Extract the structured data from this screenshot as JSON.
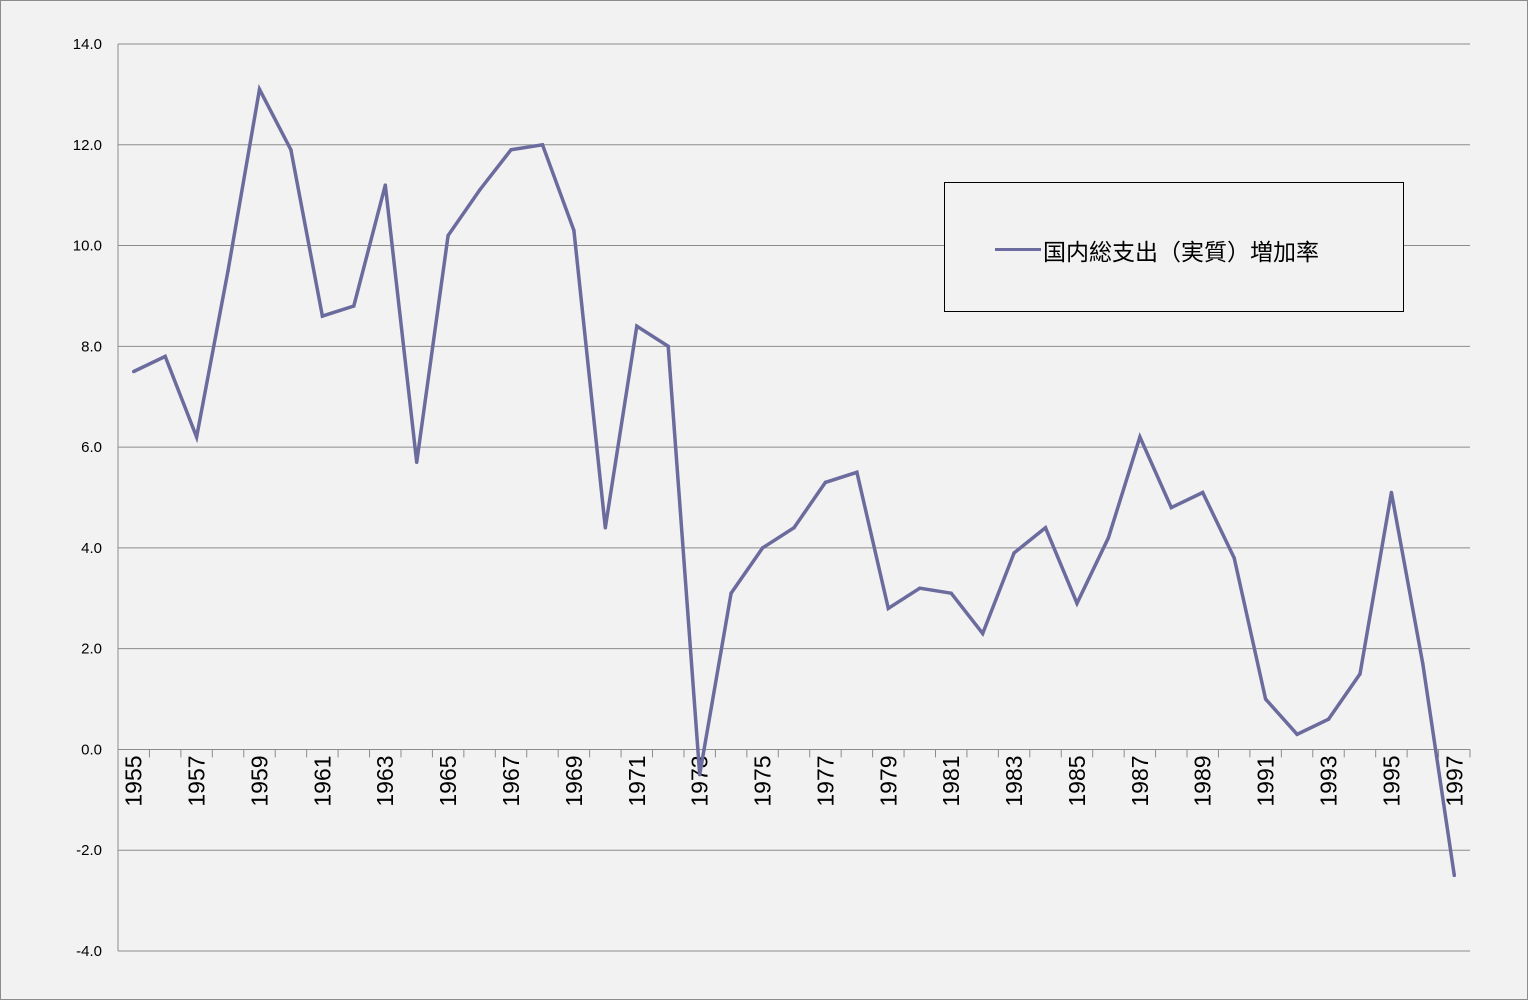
{
  "chart_data": {
    "type": "line",
    "title": "",
    "xlabel": "",
    "ylabel": "",
    "ylim": [
      -4.0,
      14.0
    ],
    "y_ticks": [
      "14.0",
      "12.0",
      "10.0",
      "8.0",
      "6.0",
      "4.0",
      "2.0",
      "0.0",
      "-2.0",
      "-4.0"
    ],
    "x_tick_labels": [
      "1955",
      "1957",
      "1959",
      "1961",
      "1963",
      "1965",
      "1967",
      "1969",
      "1971",
      "1973",
      "1975",
      "1977",
      "1979",
      "1981",
      "1983",
      "1985",
      "1987",
      "1989",
      "1991",
      "1993",
      "1995",
      "1997"
    ],
    "grid": true,
    "legend_position": "top-right",
    "series": [
      {
        "name": "国内総支出（実質）増加率",
        "color": "#6b6b9e",
        "x": [
          1955,
          1956,
          1957,
          1958,
          1959,
          1960,
          1961,
          1962,
          1963,
          1964,
          1965,
          1966,
          1967,
          1968,
          1969,
          1970,
          1971,
          1972,
          1973,
          1974,
          1975,
          1976,
          1977,
          1978,
          1979,
          1980,
          1981,
          1982,
          1983,
          1984,
          1985,
          1986,
          1987,
          1988,
          1989,
          1990,
          1991,
          1992,
          1993,
          1994,
          1995,
          1996,
          1997
        ],
        "values": [
          7.5,
          7.8,
          6.2,
          9.5,
          13.1,
          11.9,
          8.6,
          8.8,
          11.2,
          5.7,
          10.2,
          11.1,
          11.9,
          12.0,
          10.3,
          4.4,
          8.4,
          8.0,
          -0.5,
          3.1,
          4.0,
          4.4,
          5.3,
          5.5,
          2.8,
          3.2,
          3.1,
          2.3,
          3.9,
          4.4,
          2.9,
          4.2,
          6.2,
          4.8,
          5.1,
          3.8,
          1.0,
          0.3,
          0.6,
          1.5,
          5.1,
          1.7,
          -2.5
        ]
      }
    ]
  }
}
